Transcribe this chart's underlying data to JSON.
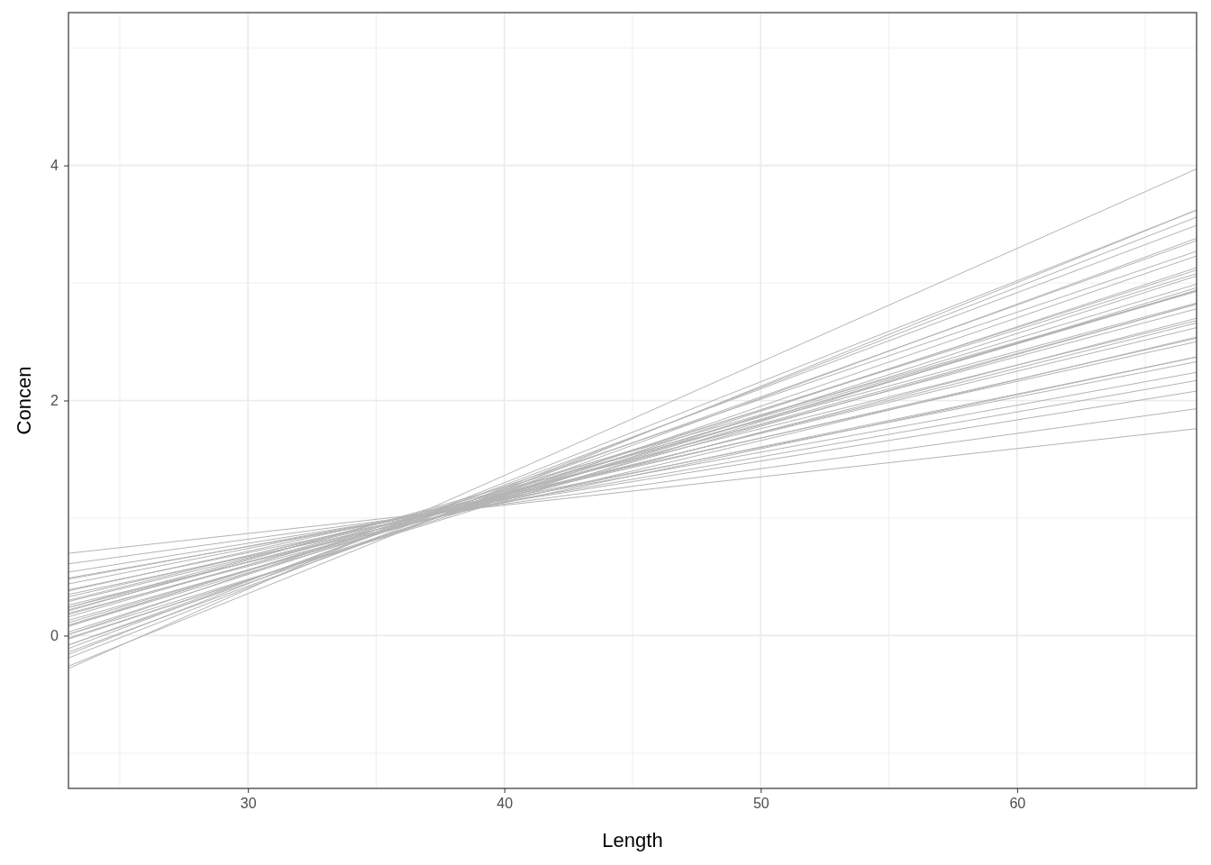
{
  "chart_data": {
    "type": "line",
    "xlabel": "Length",
    "ylabel": "Concen",
    "x": [
      23,
      67
    ],
    "xlim": [
      23,
      67
    ],
    "ylim": [
      -1.3,
      5.3
    ],
    "xticks": [
      {
        "value": 25,
        "label": null
      },
      30,
      {
        "value": 35,
        "label": null
      },
      40,
      {
        "value": 45,
        "label": null
      },
      50,
      {
        "value": 55,
        "label": null
      },
      60,
      {
        "value": 65,
        "label": null
      }
    ],
    "yticks": [
      {
        "value": -1,
        "label": null
      },
      0,
      {
        "value": 1,
        "label": null
      },
      2,
      {
        "value": 3,
        "label": null
      },
      4,
      {
        "value": 5,
        "label": null
      }
    ],
    "grid": true,
    "marker": "none",
    "line_style": "solid",
    "series": [
      {
        "color": "#b3b3b3",
        "values": [
          -0.28,
          3.97
        ]
      },
      {
        "color": "#b3b3b3",
        "values": [
          0.7,
          1.76
        ]
      },
      {
        "color": "#b3b3b3",
        "values": [
          -0.19,
          3.56
        ]
      },
      {
        "color": "#b3b3b3",
        "values": [
          -0.14,
          3.38
        ]
      },
      {
        "color": "#b3b3b3",
        "values": [
          -0.08,
          3.23
        ]
      },
      {
        "color": "#b3b3b3",
        "values": [
          0.03,
          3.11
        ]
      },
      {
        "color": "#b3b3b3",
        "values": [
          0.08,
          2.94
        ]
      },
      {
        "color": "#b3b3b3",
        "values": [
          0.18,
          2.82
        ]
      },
      {
        "color": "#b3b3b3",
        "values": [
          0.24,
          2.66
        ]
      },
      {
        "color": "#b3b3b3",
        "values": [
          0.33,
          2.53
        ]
      },
      {
        "color": "#b3b3b3",
        "values": [
          0.39,
          2.37
        ]
      },
      {
        "color": "#b3b3b3",
        "values": [
          0.48,
          2.24
        ]
      },
      {
        "color": "#b3b3b3",
        "values": [
          0.54,
          2.08
        ]
      },
      {
        "color": "#b3b3b3",
        "values": [
          0.61,
          1.93
        ]
      },
      {
        "color": "#b3b3b3",
        "values": [
          -0.11,
          3.49
        ]
      },
      {
        "color": "#b3b3b3",
        "values": [
          -0.08,
          3.36
        ]
      },
      {
        "color": "#b3b3b3",
        "values": [
          -0.03,
          3.13
        ]
      },
      {
        "color": "#b3b3b3",
        "values": [
          0.08,
          3.08
        ]
      },
      {
        "color": "#b3b3b3",
        "values": [
          0.09,
          2.99
        ]
      },
      {
        "color": "#b3b3b3",
        "values": [
          0.16,
          2.93
        ]
      },
      {
        "color": "#b3b3b3",
        "values": [
          0.13,
          2.82
        ]
      },
      {
        "color": "#b3b3b3",
        "values": [
          0.22,
          2.78
        ]
      },
      {
        "color": "#b3b3b3",
        "values": [
          0.19,
          2.7
        ]
      },
      {
        "color": "#b3b3b3",
        "values": [
          0.29,
          2.62
        ]
      },
      {
        "color": "#b3b3b3",
        "values": [
          0.26,
          2.54
        ]
      },
      {
        "color": "#b3b3b3",
        "values": [
          0.38,
          2.5
        ]
      },
      {
        "color": "#b3b3b3",
        "values": [
          0.35,
          2.37
        ]
      },
      {
        "color": "#b3b3b3",
        "values": [
          0.44,
          2.33
        ]
      },
      {
        "color": "#b3b3b3",
        "values": [
          0.49,
          2.17
        ]
      },
      {
        "color": "#b3b3b3",
        "values": [
          0.21,
          2.93
        ]
      },
      {
        "color": "#b3b3b3",
        "values": [
          0.01,
          3.27
        ]
      },
      {
        "color": "#b3b3b3",
        "values": [
          -0.26,
          3.62
        ]
      },
      {
        "color": "#b3b3b3",
        "values": [
          -0.16,
          3.62
        ]
      },
      {
        "color": "#b3b3b3",
        "values": [
          0.01,
          2.96
        ]
      },
      {
        "color": "#b3b3b3",
        "values": [
          0.24,
          2.83
        ]
      },
      {
        "color": "#b3b3b3",
        "values": [
          0.3,
          2.68
        ]
      },
      {
        "color": "#b3b3b3",
        "values": [
          -0.02,
          3.06
        ]
      },
      {
        "color": "#b3b3b3",
        "values": [
          0.11,
          2.93
        ]
      }
    ]
  }
}
